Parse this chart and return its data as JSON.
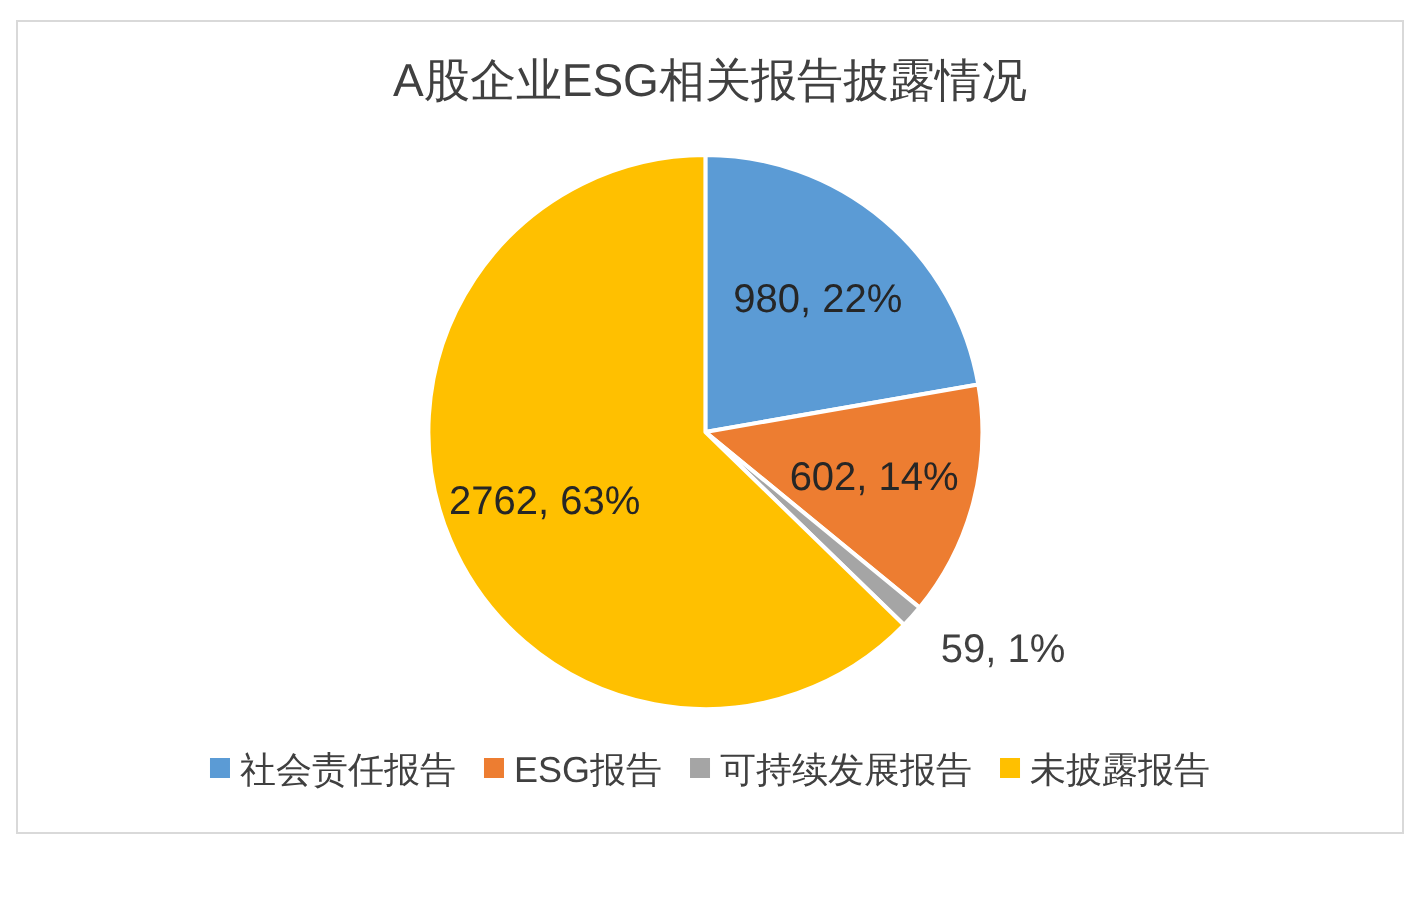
{
  "chart_data": {
    "type": "pie",
    "title": "A股企业ESG相关报告披露情况",
    "categories": [
      "社会责任报告",
      "ESG报告",
      "可持续发展报告",
      "未披露报告"
    ],
    "values": [
      980,
      602,
      59,
      2762
    ],
    "colors": [
      "#5b9bd5",
      "#ed7d31",
      "#a5a5a5",
      "#ffc000"
    ],
    "value_labels": [
      "980, 22%",
      "602, 14%",
      "59, 1%",
      "2762, 63%"
    ],
    "legend": "bottom"
  }
}
